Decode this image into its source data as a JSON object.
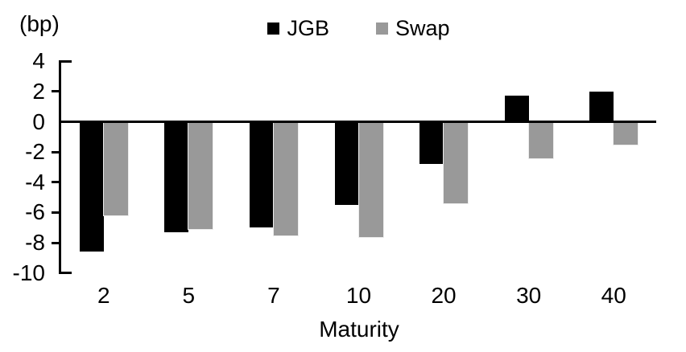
{
  "figure": {
    "unit_label": "(bp)",
    "x_axis_title": "Maturity"
  },
  "chart_data": {
    "type": "bar",
    "title": "",
    "ylabel": "(bp)",
    "xlabel": "Maturity",
    "categories": [
      "2",
      "5",
      "7",
      "10",
      "20",
      "30",
      "40"
    ],
    "series": [
      {
        "name": "JGB",
        "color": "#000000",
        "values": [
          -8.6,
          -7.3,
          -7.0,
          -5.5,
          -2.8,
          1.7,
          2.0
        ]
      },
      {
        "name": "Swap",
        "color": "#999999",
        "values": [
          -6.2,
          -7.1,
          -7.5,
          -7.6,
          -5.4,
          -2.4,
          -1.5
        ]
      }
    ],
    "ylim": [
      -10,
      4
    ],
    "yticks": [
      4,
      2,
      0,
      -2,
      -4,
      -6,
      -8,
      -10
    ],
    "grid": false,
    "legend_position": "top-center",
    "bar_layout": "grouped-adjacent"
  }
}
